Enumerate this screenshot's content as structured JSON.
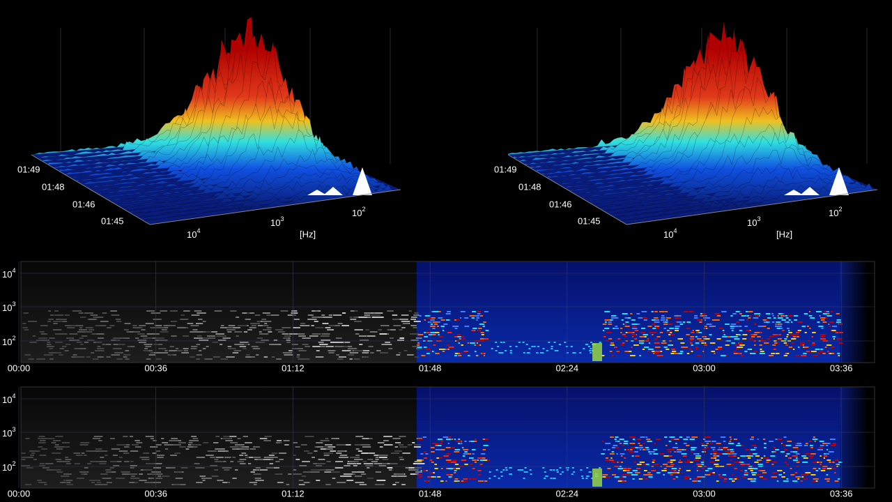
{
  "surface_plots": [
    {
      "time_labels": [
        "01:49",
        "01:48",
        "01:46",
        "01:45"
      ],
      "freq_labels": [
        {
          "base": "10",
          "exp": "4"
        },
        {
          "base": "10",
          "exp": "3"
        },
        {
          "base": "10",
          "exp": "2"
        }
      ],
      "freq_unit": "[Hz]"
    },
    {
      "time_labels": [
        "01:49",
        "01:48",
        "01:46",
        "01:45"
      ],
      "freq_labels": [
        {
          "base": "10",
          "exp": "4"
        },
        {
          "base": "10",
          "exp": "3"
        },
        {
          "base": "10",
          "exp": "2"
        }
      ],
      "freq_unit": "[Hz]"
    }
  ],
  "spectrograms": [
    {
      "freq_labels": [
        {
          "base": "10",
          "exp": "4"
        },
        {
          "base": "10",
          "exp": "3"
        },
        {
          "base": "10",
          "exp": "2"
        }
      ],
      "time_labels": [
        "00:00",
        "00:36",
        "01:12",
        "01:48",
        "02:24",
        "03:00",
        "03:36"
      ]
    },
    {
      "freq_labels": [
        {
          "base": "10",
          "exp": "4"
        },
        {
          "base": "10",
          "exp": "3"
        },
        {
          "base": "10",
          "exp": "2"
        }
      ],
      "time_labels": [
        "00:00",
        "00:36",
        "01:12",
        "01:48",
        "02:24",
        "03:00",
        "03:36"
      ]
    }
  ]
}
